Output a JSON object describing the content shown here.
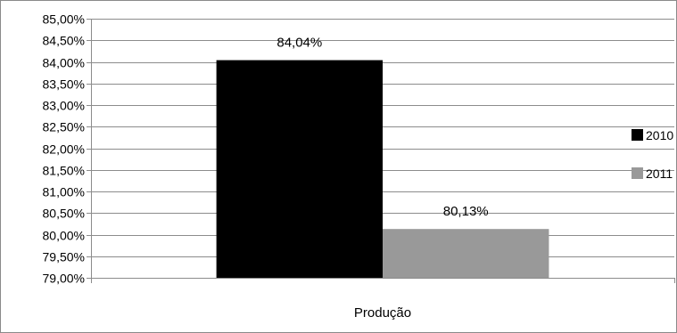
{
  "chart_data": {
    "type": "bar",
    "title": "",
    "xlabel": "",
    "ylabel": "",
    "categories": [
      "Produção"
    ],
    "series": [
      {
        "name": "2010",
        "values": [
          84.04
        ],
        "label": "84,04%",
        "color": "#000000"
      },
      {
        "name": "2011",
        "values": [
          80.13
        ],
        "label": "80,13%",
        "color": "#999999"
      }
    ],
    "ylim": [
      79,
      85
    ],
    "ytick_step": 0.5,
    "ytick_labels": [
      "79,00%",
      "79,50%",
      "80,00%",
      "80,50%",
      "81,00%",
      "81,50%",
      "82,00%",
      "82,50%",
      "83,00%",
      "83,50%",
      "84,00%",
      "84,50%",
      "85,00%"
    ],
    "grid": true,
    "legend_position": "right"
  }
}
